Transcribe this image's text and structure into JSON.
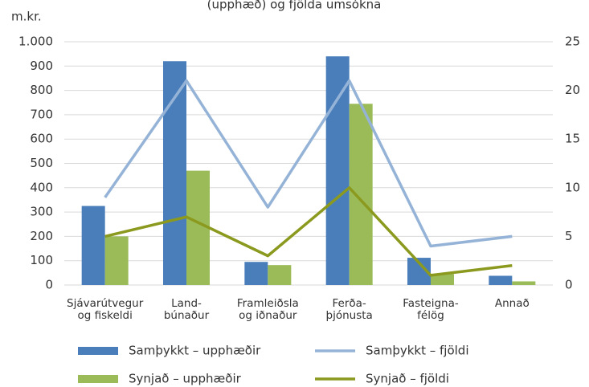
{
  "chart_data": {
    "type": "bar_line",
    "title": "(upphæð) og fjölda umsókna",
    "y_label": "m.kr.",
    "categories": [
      [
        "Sjávarútvegur",
        "og fiskeldi"
      ],
      [
        "Land-",
        "búnaður"
      ],
      [
        "Framleiðsla",
        "og iðnaður"
      ],
      [
        "Ferða-",
        "þjónusta"
      ],
      [
        "Fasteigna-",
        "félög"
      ],
      [
        "Annað"
      ]
    ],
    "series": [
      {
        "name": "Samþykkt – upphæðir",
        "color": "#4a7ebb",
        "kind": "bar",
        "values": [
          325,
          920,
          95,
          940,
          112,
          38
        ]
      },
      {
        "name": "Synjað – upphæðir",
        "color": "#9bbb59",
        "kind": "bar",
        "values": [
          200,
          470,
          82,
          745,
          45,
          15
        ]
      },
      {
        "name": "Samþykkt – fjöldi",
        "color": "#95b3d7",
        "kind": "line",
        "axis": "y2",
        "values": [
          9,
          21,
          8,
          21,
          4,
          5
        ]
      },
      {
        "name": "Synjað – fjöldi",
        "color": "#8b9a1e",
        "kind": "line",
        "axis": "y2",
        "values": [
          5,
          7,
          3,
          10,
          1,
          2
        ]
      }
    ],
    "ylim": [
      0,
      1000
    ],
    "yticks": [
      0,
      100,
      200,
      300,
      400,
      500,
      600,
      700,
      800,
      900,
      {
        "value": 1000,
        "label": "1.000"
      }
    ],
    "y2lim": [
      0,
      25
    ],
    "y2ticks": [
      0,
      5,
      10,
      15,
      20,
      25
    ],
    "grid": true
  }
}
